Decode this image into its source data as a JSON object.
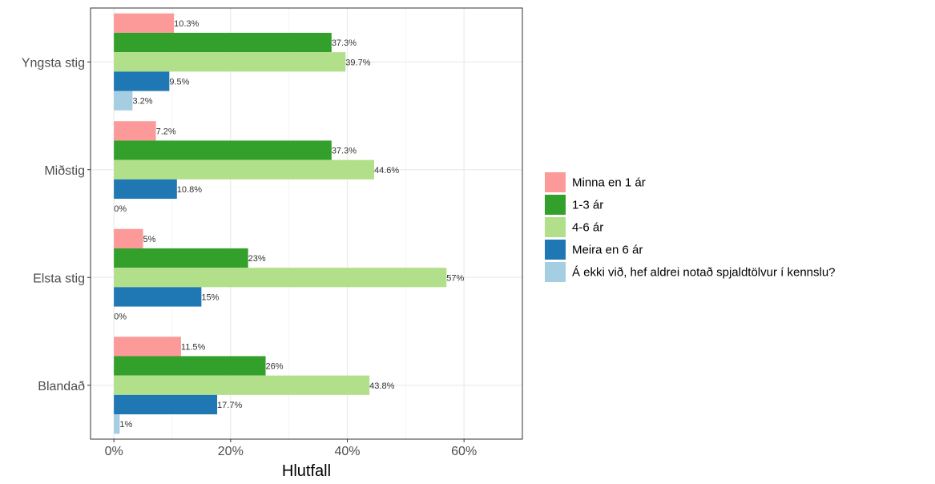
{
  "chart_data": {
    "type": "bar",
    "orientation": "horizontal",
    "categories": [
      "Yngsta stig",
      "Miðstig",
      "Elsta stig",
      "Blandað"
    ],
    "series": [
      {
        "name": "Minna en 1 ár",
        "color": "#FB9A99",
        "values": [
          10.3,
          7.2,
          5,
          11.5
        ],
        "labels": [
          "10.3%",
          "7.2%",
          "5%",
          "11.5%"
        ]
      },
      {
        "name": "1-3 ár",
        "color": "#33A02C",
        "values": [
          37.3,
          37.3,
          23,
          26
        ],
        "labels": [
          "37.3%",
          "37.3%",
          "23%",
          "26%"
        ]
      },
      {
        "name": "4-6 ár",
        "color": "#B2DF8A",
        "values": [
          39.7,
          44.6,
          57,
          43.8
        ],
        "labels": [
          "39.7%",
          "44.6%",
          "57%",
          "43.8%"
        ]
      },
      {
        "name": "Meira en 6 ár",
        "color": "#1F78B4",
        "values": [
          9.5,
          10.8,
          15,
          17.7
        ],
        "labels": [
          "9.5%",
          "10.8%",
          "15%",
          "17.7%"
        ]
      },
      {
        "name": "Á ekki við, hef aldrei notað spjaldtölvur í kennslu?",
        "color": "#A6CEE3",
        "values": [
          3.2,
          0,
          0,
          1
        ],
        "labels": [
          "3.2%",
          "0%",
          "0%",
          "1%"
        ]
      }
    ],
    "xlabel": "Hlutfall",
    "ylabel": "",
    "xlim": [
      -4,
      70
    ],
    "xticks": [
      0,
      20,
      40,
      60
    ],
    "xtick_labels": [
      "0%",
      "20%",
      "40%",
      "60%"
    ],
    "grid": true,
    "legend_position": "right"
  }
}
